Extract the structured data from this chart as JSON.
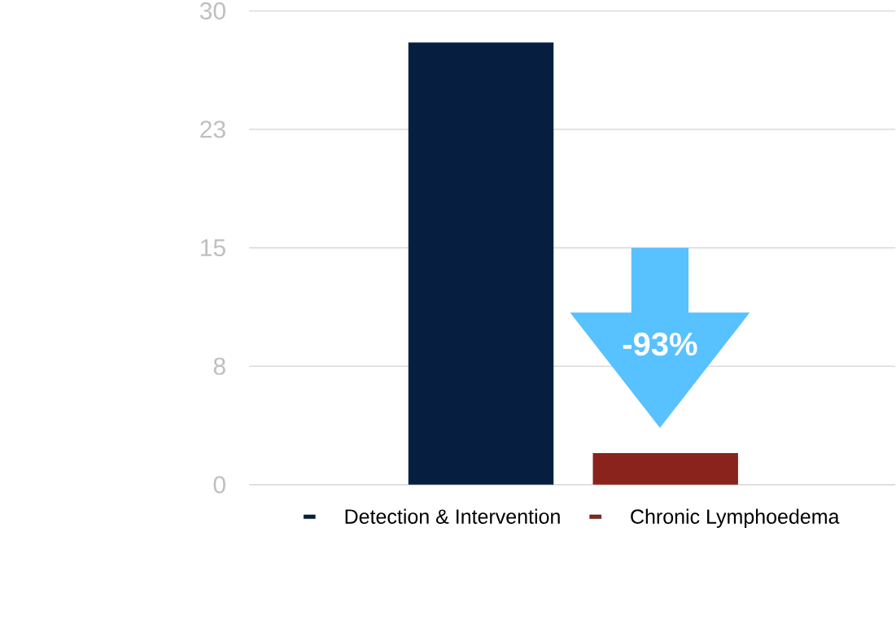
{
  "chart_data": {
    "type": "bar",
    "categories": [
      null,
      null
    ],
    "series": [
      {
        "name": "Detection & Intervention",
        "color": "#061f40",
        "values": [
          28,
          null
        ]
      },
      {
        "name": "Chronic Lymphoedema",
        "color": "#89231b",
        "values": [
          null,
          2
        ]
      }
    ],
    "ylim": [
      0,
      30
    ],
    "yticks": [
      0,
      {
        "value": 7.5,
        "label": "8"
      },
      15,
      {
        "value": 22.5,
        "label": "23"
      },
      30
    ],
    "grid": "y",
    "legend": "bottom",
    "annotations": [
      "-93%"
    ]
  }
}
